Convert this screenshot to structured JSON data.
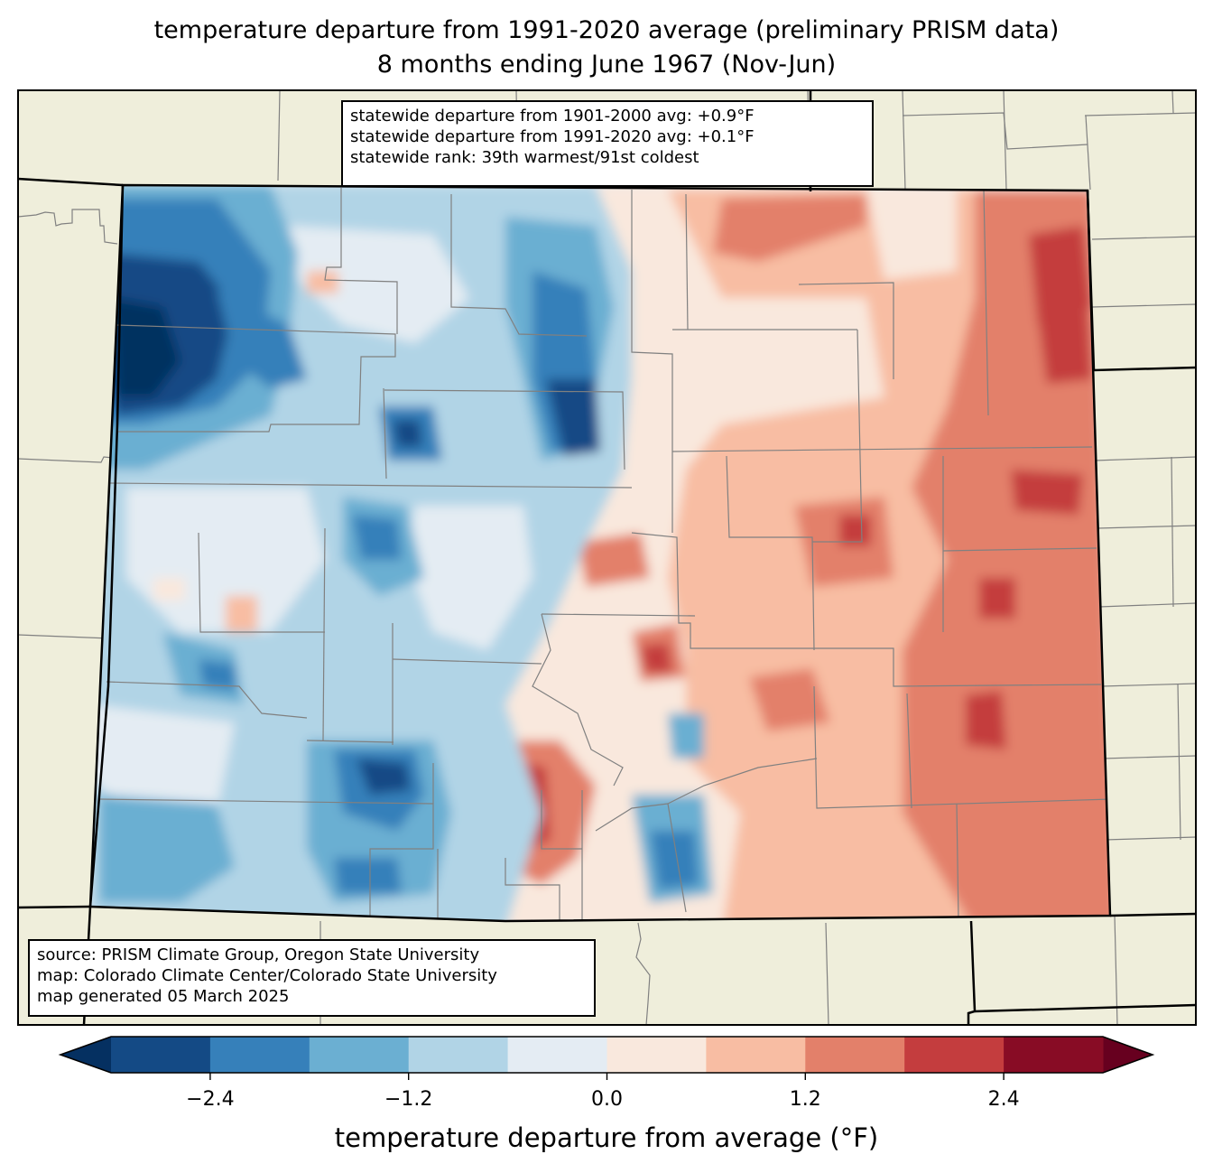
{
  "title": {
    "line1": "temperature departure from 1991-2020 average (preliminary PRISM data)",
    "line2": "8 months ending June 1967 (Nov-Jun)"
  },
  "stats_box": {
    "line1": "statewide departure from 1901-2000 avg: +0.9°F",
    "line2": "statewide departure from 1991-2020 avg: +0.1°F",
    "line3": "statewide rank: 39th warmest/91st coldest"
  },
  "credits_box": {
    "line1": "source: PRISM Climate Group, Oregon State University",
    "line2": "map: Colorado Climate Center/Colorado State University",
    "line3": "map generated 05 March 2025"
  },
  "colors": {
    "land": "#efeedb",
    "state_border": "#000000",
    "county_line": "#808080"
  },
  "chart_data": {
    "type": "heatmap",
    "title": "temperature departure from 1991-2020 average (preliminary PRISM data)",
    "subtitle": "8 months ending June 1967 (Nov-Jun)",
    "region": "Colorado",
    "colorbar": {
      "label": "temperature departure from average (°F)",
      "bin_edges": [
        -3.0,
        -2.4,
        -1.8,
        -1.2,
        -0.6,
        0.0,
        0.6,
        1.2,
        1.8,
        2.4,
        3.0
      ],
      "bin_colors": [
        "#144a85",
        "#3680ba",
        "#6bafd2",
        "#b1d4e6",
        "#e4ecf3",
        "#f9e8dd",
        "#f8bda3",
        "#e3806a",
        "#c43d3e",
        "#880c25"
      ],
      "under_color": "#053061",
      "over_color": "#67001f",
      "extend": "both",
      "ticks": [
        -2.4,
        -1.2,
        0.0,
        1.2,
        2.4
      ],
      "tick_labels": [
        "−2.4",
        "−1.2",
        "0.0",
        "1.2",
        "2.4"
      ]
    },
    "pattern_summary": {
      "west_and_northwest": "below average (blue), coldest in far northwest",
      "east_and_southeast": "above average (red/orange)",
      "south_central": "warm anomaly center near San Luis Valley east side"
    }
  }
}
